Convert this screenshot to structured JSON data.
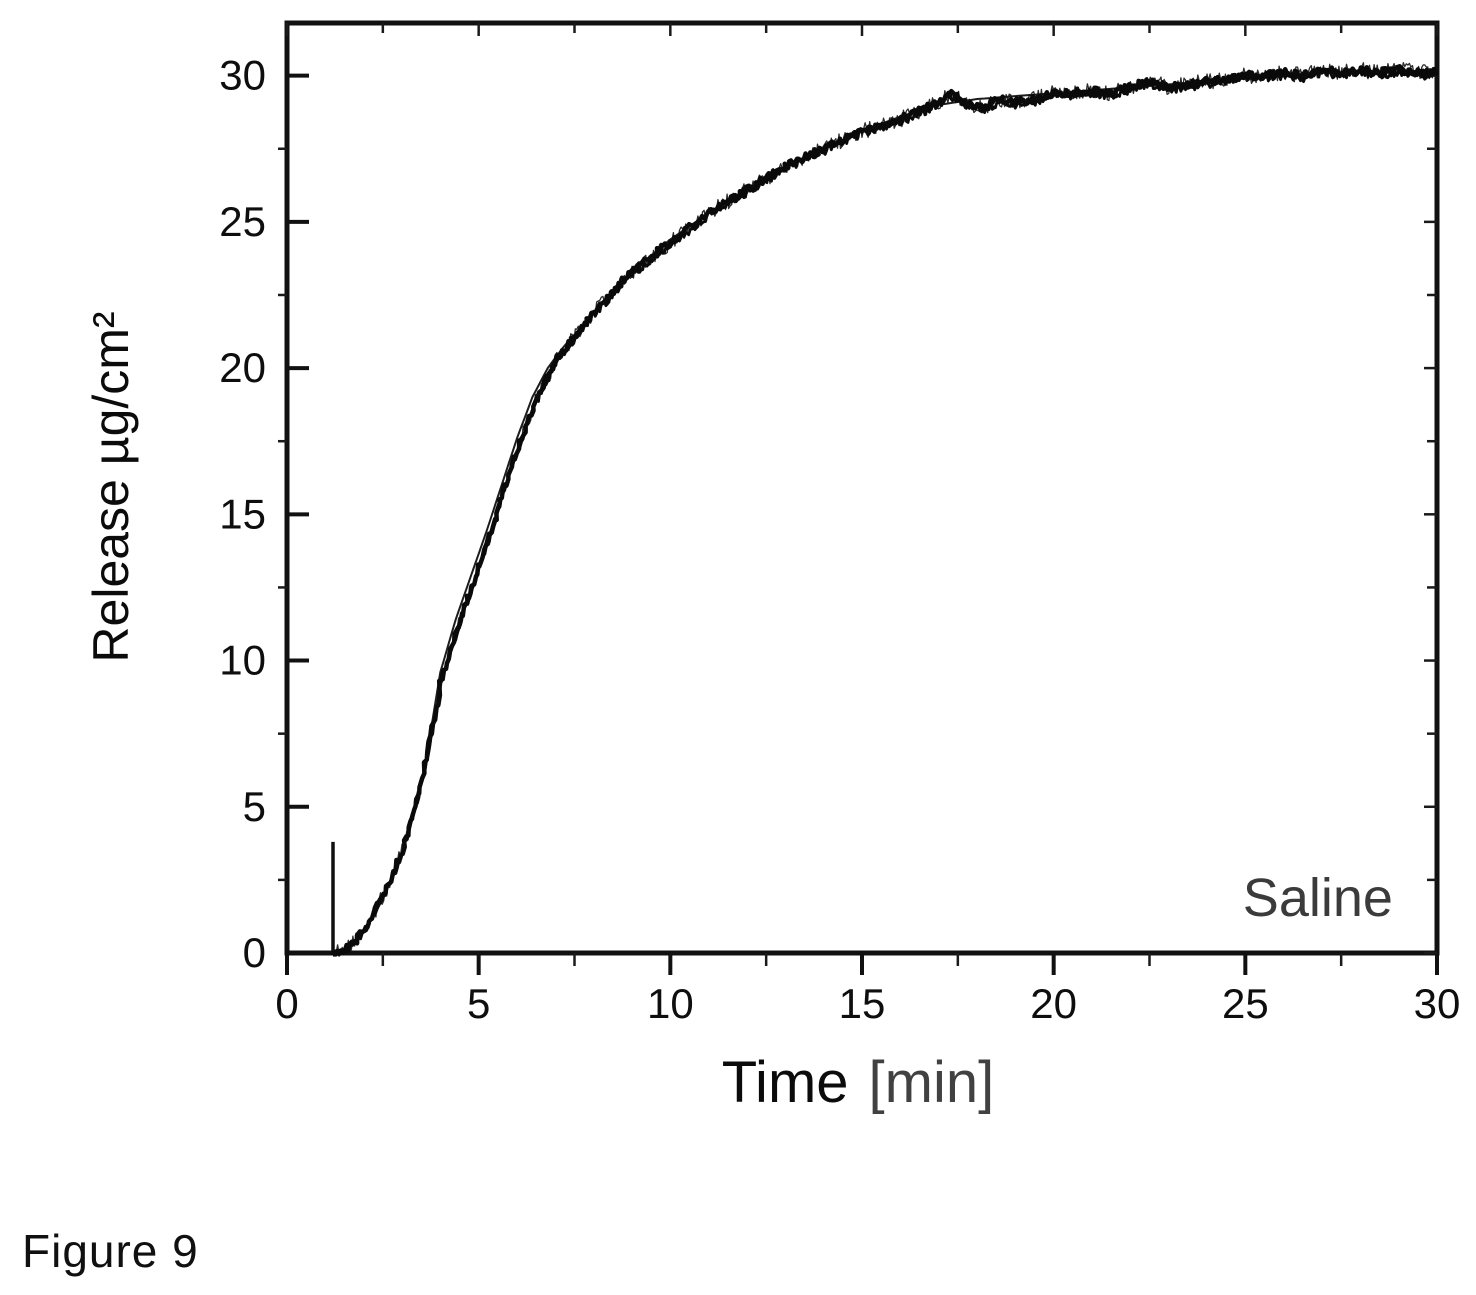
{
  "figure": {
    "caption": "Figure 9"
  },
  "chart": {
    "xlabel_main": "Time",
    "xlabel_unit": "[min]",
    "ylabel": "Release µg/cm²",
    "ink_color": "#0a0a0a",
    "annotation_color": "#2a2a2a",
    "background": "#ffffff"
  },
  "chart_data": {
    "type": "line",
    "title": "",
    "xlabel": "Time [min]",
    "ylabel": "Release µg/cm²",
    "xlim": [
      0,
      30
    ],
    "ylim": [
      0,
      31.8
    ],
    "x_major_ticks": [
      0,
      5,
      10,
      15,
      20,
      25,
      30
    ],
    "y_major_ticks": [
      0,
      5,
      10,
      15,
      20,
      25,
      30
    ],
    "minor_tick_step": 2.5,
    "grid": false,
    "legend_position": "none",
    "annotations": [
      {
        "text": "Saline",
        "x": 28.85,
        "y": 1.26,
        "anchor": "end"
      }
    ],
    "event_marker": {
      "type": "vertical-line",
      "x": 1.2,
      "y_from": 0,
      "y_to": 3.8
    },
    "series": [
      {
        "name": "measured release (noisy trace)",
        "style": "noisy",
        "points": [
          [
            1.2,
            0.0
          ],
          [
            1.4,
            0.05
          ],
          [
            1.6,
            0.2
          ],
          [
            1.8,
            0.45
          ],
          [
            2.0,
            0.8
          ],
          [
            2.2,
            1.2
          ],
          [
            2.4,
            1.7
          ],
          [
            2.6,
            2.2
          ],
          [
            2.8,
            2.8
          ],
          [
            3.0,
            3.5
          ],
          [
            3.2,
            4.3
          ],
          [
            3.4,
            5.3
          ],
          [
            3.6,
            6.4
          ],
          [
            3.8,
            7.7
          ],
          [
            4.0,
            9.2
          ],
          [
            4.2,
            10.1
          ],
          [
            4.5,
            11.3
          ],
          [
            4.75,
            12.2
          ],
          [
            5.0,
            13.2
          ],
          [
            5.25,
            14.1
          ],
          [
            5.5,
            15.2
          ],
          [
            5.75,
            16.2
          ],
          [
            6.0,
            17.2
          ],
          [
            6.25,
            18.1
          ],
          [
            6.5,
            18.9
          ],
          [
            6.75,
            19.6
          ],
          [
            7.0,
            20.2
          ],
          [
            7.5,
            21.1
          ],
          [
            8.0,
            21.9
          ],
          [
            8.5,
            22.6
          ],
          [
            9.0,
            23.3
          ],
          [
            9.5,
            23.8
          ],
          [
            10.0,
            24.3
          ],
          [
            10.5,
            24.8
          ],
          [
            11.0,
            25.3
          ],
          [
            11.5,
            25.7
          ],
          [
            12.0,
            26.1
          ],
          [
            12.5,
            26.5
          ],
          [
            13.0,
            26.9
          ],
          [
            13.5,
            27.2
          ],
          [
            14.0,
            27.5
          ],
          [
            14.5,
            27.8
          ],
          [
            15.0,
            28.1
          ],
          [
            15.5,
            28.3
          ],
          [
            16.0,
            28.5
          ],
          [
            16.5,
            28.8
          ],
          [
            17.0,
            29.1
          ],
          [
            17.3,
            29.4
          ],
          [
            17.8,
            29.0
          ],
          [
            18.2,
            28.9
          ],
          [
            18.6,
            29.2
          ],
          [
            19.0,
            29.1
          ],
          [
            19.5,
            29.2
          ],
          [
            20.0,
            29.4
          ],
          [
            20.5,
            29.4
          ],
          [
            21.0,
            29.5
          ],
          [
            21.5,
            29.4
          ],
          [
            22.0,
            29.6
          ],
          [
            22.5,
            29.8
          ],
          [
            23.0,
            29.6
          ],
          [
            23.5,
            29.7
          ],
          [
            24.0,
            29.8
          ],
          [
            24.5,
            29.9
          ],
          [
            25.0,
            30.0
          ],
          [
            25.5,
            30.0
          ],
          [
            26.0,
            30.1
          ],
          [
            26.5,
            30.0
          ],
          [
            27.0,
            30.2
          ],
          [
            27.5,
            30.1
          ],
          [
            28.0,
            30.2
          ],
          [
            28.5,
            30.1
          ],
          [
            29.0,
            30.2
          ],
          [
            29.5,
            30.1
          ],
          [
            30.0,
            30.1
          ]
        ]
      },
      {
        "name": "fit line",
        "style": "smooth",
        "points": [
          [
            1.2,
            0.0
          ],
          [
            1.6,
            0.15
          ],
          [
            2.0,
            0.7
          ],
          [
            2.4,
            1.6
          ],
          [
            2.8,
            2.7
          ],
          [
            3.2,
            4.2
          ],
          [
            3.6,
            6.4
          ],
          [
            4.0,
            9.6
          ],
          [
            4.4,
            11.4
          ],
          [
            4.8,
            12.9
          ],
          [
            5.2,
            14.4
          ],
          [
            5.6,
            16.0
          ],
          [
            6.0,
            17.6
          ],
          [
            6.4,
            19.0
          ],
          [
            6.8,
            20.0
          ],
          [
            7.2,
            20.7
          ],
          [
            7.6,
            21.3
          ],
          [
            8.0,
            21.9
          ],
          [
            9.0,
            23.3
          ],
          [
            10.0,
            24.4
          ],
          [
            11.0,
            25.3
          ],
          [
            12.0,
            26.1
          ],
          [
            13.0,
            26.9
          ],
          [
            14.0,
            27.5
          ],
          [
            15.0,
            28.1
          ],
          [
            16.0,
            28.6
          ],
          [
            17.0,
            29.0
          ],
          [
            18.0,
            29.2
          ],
          [
            19.0,
            29.3
          ],
          [
            20.0,
            29.4
          ],
          [
            21.0,
            29.5
          ],
          [
            22.0,
            29.6
          ],
          [
            23.0,
            29.7
          ],
          [
            24.0,
            29.8
          ],
          [
            25.0,
            29.9
          ],
          [
            26.0,
            30.0
          ],
          [
            27.0,
            30.1
          ],
          [
            28.0,
            30.1
          ],
          [
            29.0,
            30.1
          ],
          [
            30.0,
            30.1
          ]
        ]
      }
    ]
  }
}
